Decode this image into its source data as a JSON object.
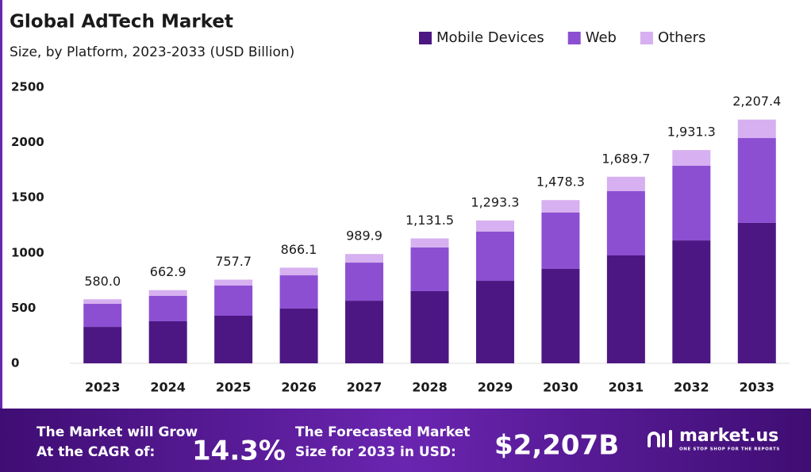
{
  "chart_data": {
    "type": "bar",
    "stacked": true,
    "title": "Global AdTech Market",
    "subtitle": "Size, by Platform, 2023-2033 (USD Billion)",
    "categories": [
      "2023",
      "2024",
      "2025",
      "2026",
      "2027",
      "2028",
      "2029",
      "2030",
      "2031",
      "2032",
      "2033"
    ],
    "series": [
      {
        "name": "Mobile Devices",
        "color": "#4c1782",
        "values": [
          330,
          381,
          431,
          496,
          567,
          654,
          747,
          855,
          977,
          1113,
          1272
        ]
      },
      {
        "name": "Web",
        "color": "#8c4fd2",
        "values": [
          209,
          230,
          273,
          301,
          345,
          395,
          446,
          510,
          582,
          676,
          768
        ]
      },
      {
        "name": "Others",
        "color": "#d6b0f0",
        "values": [
          41,
          51.9,
          53.7,
          69.1,
          77.9,
          82.5,
          100.3,
          113.3,
          130.7,
          142.3,
          167.4
        ]
      }
    ],
    "totals": [
      580,
      662.9,
      757.7,
      866.1,
      989.9,
      1131.5,
      1293.3,
      1478.3,
      1689.7,
      1931.3,
      2207.4
    ],
    "total_labels": [
      "580.0",
      "662.9",
      "757.7",
      "866.1",
      "989.9",
      "1,131.5",
      "1,293.3",
      "1,478.3",
      "1,689.7",
      "1,931.3",
      "2,207.4"
    ],
    "ylim": [
      0,
      2500
    ],
    "yticks": [
      0,
      500,
      1000,
      1500,
      2000,
      2500
    ],
    "grid": false,
    "legend": "top-right"
  },
  "footer": {
    "cagr_text": [
      "The Market will Grow",
      "At the CAGR of:"
    ],
    "cagr_value": "14.3%",
    "forecast_text": [
      "The Forecasted Market",
      "Size for 2033 in USD:"
    ],
    "forecast_value": "$2,207B",
    "brand": "market.us",
    "tagline": "ONE STOP SHOP FOR THE REPORTS"
  }
}
